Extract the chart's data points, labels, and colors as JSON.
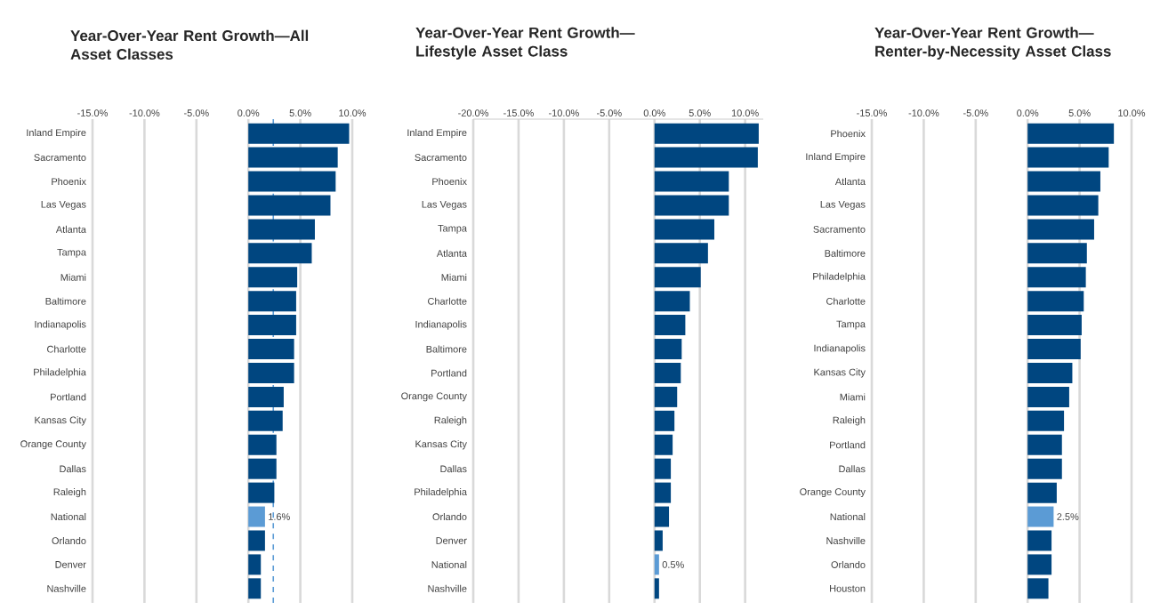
{
  "chart_data": [
    {
      "type": "bar",
      "orientation": "horizontal",
      "title": "Year-Over-Year Rent Growth—All Asset Classes",
      "categories": [
        "Inland Empire",
        "Sacramento",
        "Phoenix",
        "Las Vegas",
        "Atlanta",
        "Tampa",
        "Miami",
        "Baltimore",
        "Indianapolis",
        "Charlotte",
        "Philadelphia",
        "Portland",
        "Kansas City",
        "Orange County",
        "Dallas",
        "Raleigh",
        "National",
        "Orlando",
        "Denver",
        "Nashville"
      ],
      "values": [
        9.7,
        8.6,
        8.4,
        7.9,
        6.4,
        6.1,
        4.7,
        4.6,
        4.6,
        4.4,
        4.4,
        3.4,
        3.3,
        2.7,
        2.7,
        2.5,
        1.6,
        1.6,
        1.2,
        1.2
      ],
      "colors": [
        "#004680",
        "#004680",
        "#004680",
        "#004680",
        "#004680",
        "#004680",
        "#004680",
        "#004680",
        "#004680",
        "#004680",
        "#004680",
        "#004680",
        "#004680",
        "#004680",
        "#004680",
        "#004680",
        "#5b9bd5",
        "#004680",
        "#004680",
        "#004680"
      ],
      "value_labels": [
        null,
        null,
        null,
        null,
        null,
        null,
        null,
        null,
        null,
        null,
        null,
        null,
        null,
        null,
        null,
        null,
        "1.6%",
        null,
        null,
        null
      ],
      "xlim": [
        -15,
        10
      ],
      "xticks": [
        {
          "value": -15,
          "label": "-15.0%"
        },
        {
          "value": -10,
          "label": "-10.0%"
        },
        {
          "value": -5,
          "label": "-5.0%"
        },
        {
          "value": 0,
          "label": "0.0%"
        },
        {
          "value": 5,
          "label": "5.0%"
        },
        {
          "value": 10,
          "label": "10.0%"
        }
      ],
      "ref_lines": [
        {
          "axis": "x",
          "value": 2.4,
          "color": "#5b9bd5",
          "line_style": "dashed"
        }
      ],
      "grid": "x"
    },
    {
      "type": "bar",
      "orientation": "horizontal",
      "title": "Year-Over-Year Rent Growth—Lifestyle Asset Class",
      "categories": [
        "Inland Empire",
        "Sacramento",
        "Phoenix",
        "Las Vegas",
        "Tampa",
        "Atlanta",
        "Miami",
        "Charlotte",
        "Indianapolis",
        "Baltimore",
        "Portland",
        "Orange County",
        "Raleigh",
        "Kansas City",
        "Dallas",
        "Philadelphia",
        "Orlando",
        "Denver",
        "National",
        "Nashville"
      ],
      "values": [
        11.5,
        11.4,
        8.2,
        8.2,
        6.6,
        5.9,
        5.1,
        3.9,
        3.4,
        3.0,
        2.9,
        2.5,
        2.2,
        2.0,
        1.8,
        1.8,
        1.6,
        0.9,
        0.5,
        0.5
      ],
      "colors": [
        "#004680",
        "#004680",
        "#004680",
        "#004680",
        "#004680",
        "#004680",
        "#004680",
        "#004680",
        "#004680",
        "#004680",
        "#004680",
        "#004680",
        "#004680",
        "#004680",
        "#004680",
        "#004680",
        "#004680",
        "#004680",
        "#5b9bd5",
        "#004680"
      ],
      "value_labels": [
        null,
        null,
        null,
        null,
        null,
        null,
        null,
        null,
        null,
        null,
        null,
        null,
        null,
        null,
        null,
        null,
        null,
        null,
        "0.5%",
        null
      ],
      "xlim": [
        -20,
        12
      ],
      "xticks": [
        {
          "value": -20,
          "label": "-20.0%"
        },
        {
          "value": -15,
          "label": "-15.0%"
        },
        {
          "value": -10,
          "label": "-10.0%"
        },
        {
          "value": -5,
          "label": "-5.0%"
        },
        {
          "value": 0,
          "label": "0.0%"
        },
        {
          "value": 5,
          "label": "5.0%"
        },
        {
          "value": 10,
          "label": "10.0%"
        }
      ],
      "grid": "x"
    },
    {
      "type": "bar",
      "orientation": "horizontal",
      "title": "Year-Over-Year Rent Growth—Renter-by-Necessity Asset Class",
      "categories": [
        "Phoenix",
        "Inland Empire",
        "Atlanta",
        "Las Vegas",
        "Sacramento",
        "Baltimore",
        "Philadelphia",
        "Charlotte",
        "Tampa",
        "Indianapolis",
        "Kansas City",
        "Miami",
        "Raleigh",
        "Portland",
        "Dallas",
        "Orange County",
        "National",
        "Nashville",
        "Orlando",
        "Houston"
      ],
      "values": [
        8.3,
        7.8,
        7.0,
        6.8,
        6.4,
        5.7,
        5.6,
        5.4,
        5.2,
        5.1,
        4.3,
        4.0,
        3.5,
        3.3,
        3.3,
        2.8,
        2.5,
        2.3,
        2.3,
        2.0
      ],
      "colors": [
        "#004680",
        "#004680",
        "#004680",
        "#004680",
        "#004680",
        "#004680",
        "#004680",
        "#004680",
        "#004680",
        "#004680",
        "#004680",
        "#004680",
        "#004680",
        "#004680",
        "#004680",
        "#004680",
        "#5b9bd5",
        "#004680",
        "#004680",
        "#004680"
      ],
      "value_labels": [
        null,
        null,
        null,
        null,
        null,
        null,
        null,
        null,
        null,
        null,
        null,
        null,
        null,
        null,
        null,
        null,
        "2.5%",
        null,
        null,
        null
      ],
      "xlim": [
        -15,
        10
      ],
      "xticks": [
        {
          "value": -15,
          "label": "-15.0%"
        },
        {
          "value": -10,
          "label": "-10.0%"
        },
        {
          "value": -5,
          "label": "-5.0%"
        },
        {
          "value": 0,
          "label": "0.0%"
        },
        {
          "value": 5,
          "label": "5.0%"
        },
        {
          "value": 10,
          "label": "10.0%"
        }
      ],
      "grid": "x"
    }
  ]
}
